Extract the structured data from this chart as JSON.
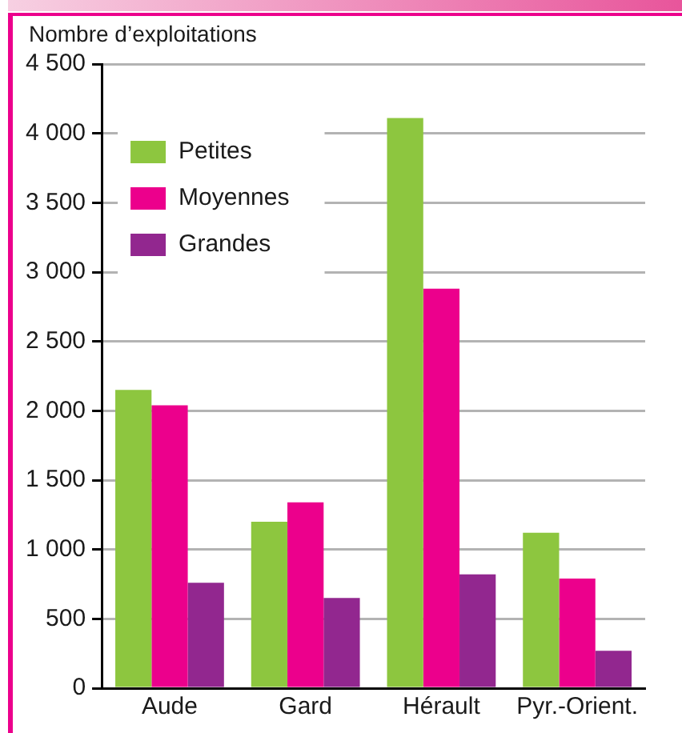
{
  "chart_data": {
    "type": "bar",
    "ylabel": "Nombre d’exploitations",
    "categories": [
      "Aude",
      "Gard",
      "Hérault",
      "Pyr.-Orient."
    ],
    "series": [
      {
        "name": "Petites",
        "color": "#8dc63f",
        "values": [
          2150,
          1200,
          4110,
          1120
        ]
      },
      {
        "name": "Moyennes",
        "color": "#ec008c",
        "values": [
          2040,
          1340,
          2880,
          790
        ]
      },
      {
        "name": "Grandes",
        "color": "#92278f",
        "values": [
          760,
          650,
          820,
          270
        ]
      }
    ],
    "ylim": [
      0,
      4500
    ],
    "yticks": [
      0,
      500,
      {
        "value": 1000,
        "label": "1 000"
      },
      {
        "value": 1500,
        "label": "1 500"
      },
      {
        "value": 2000,
        "label": "2 000"
      },
      {
        "value": 2500,
        "label": "2 500"
      },
      {
        "value": 3000,
        "label": "3 000"
      },
      {
        "value": 3500,
        "label": "3 500"
      },
      {
        "value": 4000,
        "label": "4 000"
      },
      {
        "value": 4500,
        "label": "4 500"
      }
    ],
    "grid": "y",
    "legend": "top left"
  }
}
